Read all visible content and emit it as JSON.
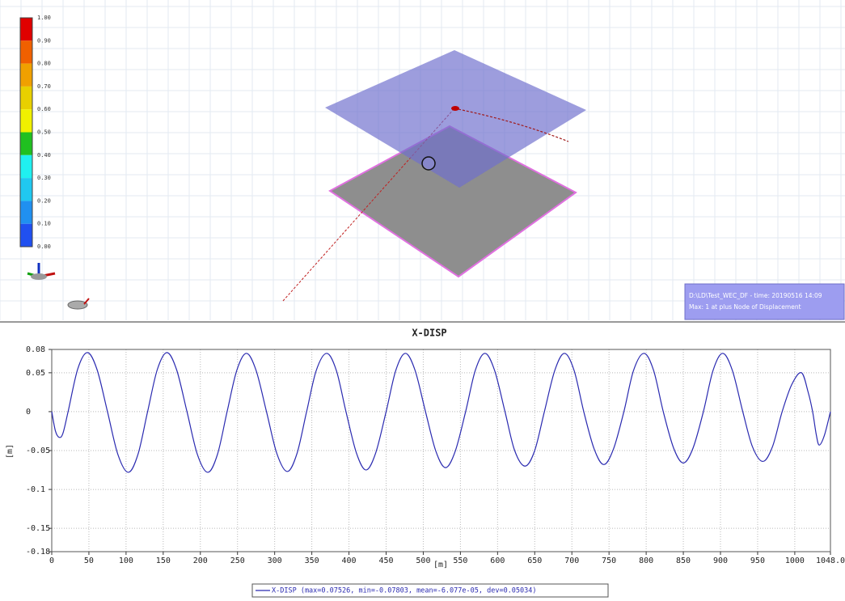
{
  "viewport": {
    "colorbar_labels": [
      "1.00",
      "0.90",
      "0.80",
      "0.70",
      "0.60",
      "0.50",
      "0.40",
      "0.30",
      "0.20",
      "0.10",
      "0.00"
    ],
    "info": [
      "D:\\LD\\Test_WEC_DF - time: 20190516 14:09",
      "Max: 1 at plus Node of Displacement"
    ]
  },
  "chart_data": {
    "type": "line",
    "title": "X-DISP",
    "x_label": "[m]",
    "y_label": "[m]",
    "x": [
      0,
      5,
      10,
      15,
      22,
      35,
      48,
      61,
      75,
      89,
      103,
      116,
      129,
      142,
      155,
      168,
      182,
      196,
      210,
      223,
      236,
      249,
      262,
      275,
      289,
      303,
      317,
      330,
      343,
      356,
      370,
      383,
      396,
      410,
      423,
      436,
      450,
      463,
      476,
      489,
      503,
      517,
      530,
      543,
      557,
      570,
      583,
      596,
      610,
      623,
      637,
      650,
      663,
      677,
      690,
      703,
      716,
      730,
      743,
      756,
      770,
      783,
      797,
      810,
      823,
      837,
      850,
      863,
      877,
      890,
      903,
      916,
      930,
      943,
      957,
      970,
      983,
      996,
      1009,
      1018,
      1024,
      1029,
      1033,
      1040,
      1048
    ],
    "series": [
      {
        "name": "X-DISP (max=0.07526, min=-0.07803, mean=-6.077e-05, dev=0.05034)",
        "color": "#2a2ab0",
        "values": [
          0,
          -0.025,
          -0.033,
          -0.028,
          0,
          0.055,
          0.076,
          0.054,
          0,
          -0.055,
          -0.078,
          -0.055,
          0,
          0.054,
          0.076,
          0.054,
          0,
          -0.055,
          -0.078,
          -0.055,
          0,
          0.053,
          0.075,
          0.053,
          0,
          -0.054,
          -0.077,
          -0.054,
          0,
          0.053,
          0.075,
          0.053,
          0,
          -0.053,
          -0.075,
          -0.053,
          0,
          0.053,
          0.075,
          0.053,
          0,
          -0.051,
          -0.072,
          -0.051,
          0,
          0.053,
          0.075,
          0.053,
          0,
          -0.05,
          -0.07,
          -0.05,
          0,
          0.053,
          0.075,
          0.053,
          0,
          -0.048,
          -0.068,
          -0.048,
          0,
          0.053,
          0.075,
          0.053,
          0,
          -0.047,
          -0.066,
          -0.047,
          0,
          0.053,
          0.075,
          0.053,
          0,
          -0.045,
          -0.064,
          -0.045,
          0,
          0.035,
          0.05,
          0.025,
          0,
          -0.03,
          -0.043,
          -0.03,
          0
        ]
      }
    ],
    "xlim": [
      0,
      1048
    ],
    "xticks": [
      0,
      50,
      100,
      150,
      200,
      250,
      300,
      350,
      400,
      450,
      500,
      550,
      600,
      650,
      700,
      750,
      800,
      850,
      900,
      950,
      1000,
      {
        "value": 1048,
        "label": "1048.0"
      }
    ],
    "ylim": [
      -0.18,
      0.08
    ],
    "yticks": [
      -0.18,
      -0.15,
      -0.1,
      -0.05,
      0,
      0.05,
      0.08
    ],
    "grid": true
  }
}
